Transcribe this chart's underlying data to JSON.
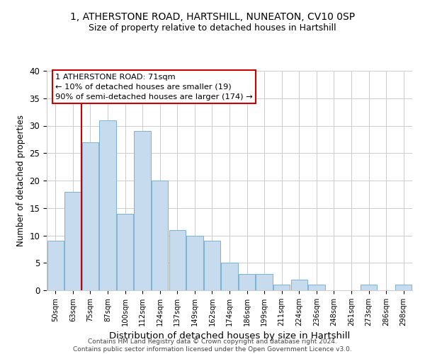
{
  "title1": "1, ATHERSTONE ROAD, HARTSHILL, NUNEATON, CV10 0SP",
  "title2": "Size of property relative to detached houses in Hartshill",
  "xlabel": "Distribution of detached houses by size in Hartshill",
  "ylabel": "Number of detached properties",
  "bin_labels": [
    "50sqm",
    "63sqm",
    "75sqm",
    "87sqm",
    "100sqm",
    "112sqm",
    "124sqm",
    "137sqm",
    "149sqm",
    "162sqm",
    "174sqm",
    "186sqm",
    "199sqm",
    "211sqm",
    "224sqm",
    "236sqm",
    "248sqm",
    "261sqm",
    "273sqm",
    "286sqm",
    "298sqm"
  ],
  "bin_values": [
    9,
    18,
    27,
    31,
    14,
    29,
    20,
    11,
    10,
    9,
    5,
    3,
    3,
    1,
    2,
    1,
    0,
    0,
    1,
    0,
    1
  ],
  "bar_color": "#c6dcee",
  "bar_edge_color": "#7ab3d3",
  "vline_x_idx": 2,
  "vline_color": "#cc0000",
  "annotation_text": "1 ATHERSTONE ROAD: 71sqm\n← 10% of detached houses are smaller (19)\n90% of semi-detached houses are larger (174) →",
  "annotation_box_color": "#ffffff",
  "annotation_box_edge": "#cc0000",
  "ylim": [
    0,
    40
  ],
  "yticks": [
    0,
    5,
    10,
    15,
    20,
    25,
    30,
    35,
    40
  ],
  "footer": "Contains HM Land Registry data © Crown copyright and database right 2024.\nContains public sector information licensed under the Open Government Licence v3.0.",
  "bg_color": "#ffffff",
  "grid_color": "#cccccc"
}
